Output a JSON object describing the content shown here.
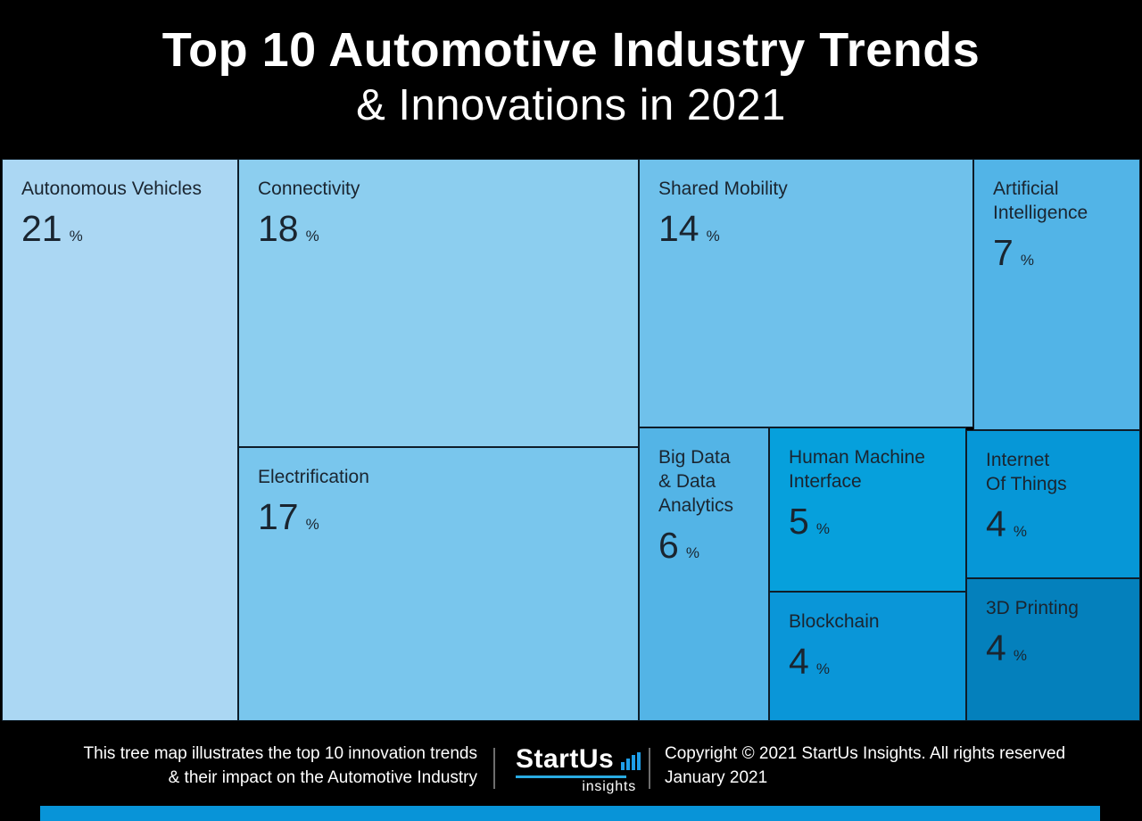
{
  "header": {
    "title_line1": "Top 10 Automotive Industry Trends",
    "title_line2": "& Innovations in 2021"
  },
  "chart_data": {
    "type": "treemap",
    "title": "Top 10 Automotive Industry Trends & Innovations in 2021",
    "unit": "%",
    "cells": [
      {
        "id": "autonomous-vehicles",
        "label": "Autonomous Vehicles",
        "value": 21,
        "color": "#abd7f3"
      },
      {
        "id": "connectivity",
        "label": "Connectivity",
        "value": 18,
        "color": "#8cceef"
      },
      {
        "id": "electrification",
        "label": "Electrification",
        "value": 17,
        "color": "#79c6ed"
      },
      {
        "id": "shared-mobility",
        "label": "Shared Mobility",
        "value": 14,
        "color": "#6fc1eb"
      },
      {
        "id": "artificial-intelligence",
        "label": "Artificial\nIntelligence",
        "value": 7,
        "color": "#52b4e7"
      },
      {
        "id": "big-data-data-analytics",
        "label": "Big Data\n& Data\nAnalytics",
        "value": 6,
        "color": "#53b4e6"
      },
      {
        "id": "human-machine-interface",
        "label": "Human Machine\nInterface",
        "value": 5,
        "color": "#06a0dc"
      },
      {
        "id": "internet-of-things",
        "label": "Internet\nOf Things",
        "value": 4,
        "color": "#0697d7"
      },
      {
        "id": "blockchain",
        "label": "Blockchain",
        "value": 4,
        "color": "#0a96d8"
      },
      {
        "id": "3d-printing",
        "label": "3D Printing",
        "value": 4,
        "color": "#0480bc"
      }
    ]
  },
  "footer": {
    "tagline": "This tree map illustrates the top 10 innovation trends\n& their impact on the Automotive Industry",
    "logo": {
      "brand": "StartUs",
      "sub": "insights",
      "bar_color": "#1e9ee8",
      "underline_color": "#29abe2"
    },
    "copyright": "Copyright © 2021 StartUs Insights. All rights reserved\nJanuary 2021",
    "accent_bar_color": "#0894d8"
  }
}
